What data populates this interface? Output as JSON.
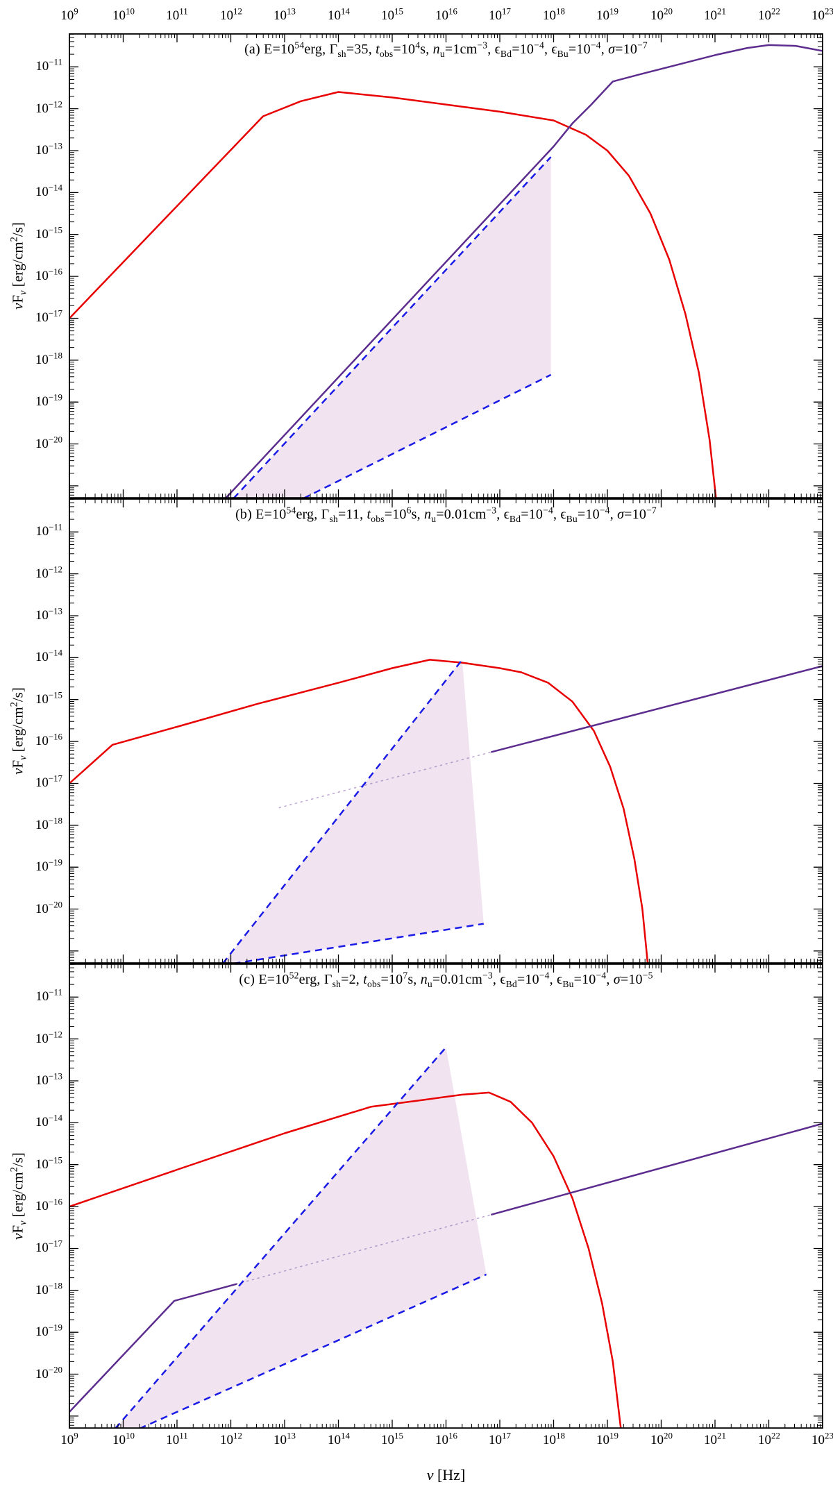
{
  "figure": {
    "background": "#ffffff",
    "frame_color": "#000000",
    "x_axis": {
      "min_exp": 9,
      "max_exp": 23,
      "title": "*ν* [Hz]",
      "tick_label_base": "10",
      "labeled_exponents": [
        9,
        10,
        11,
        12,
        13,
        14,
        15,
        16,
        17,
        18,
        19,
        20,
        21,
        22,
        23
      ]
    },
    "y_axis": {
      "top_limit_exp": -10.2,
      "bottom_limit_exp": -21.3,
      "title": "*ν*F_{*ν*} [erg/cm^{2}/s]",
      "labeled_exponents": [
        -11,
        -12,
        -13,
        -14,
        -15,
        -16,
        -17,
        -18,
        -19,
        -20
      ]
    },
    "colors": {
      "red_line": "#e80000",
      "purple_line": "#5c2d8e",
      "blue_dashed": "#1a1ae6",
      "shade_fill": "#f1e4f0"
    }
  },
  "chart_data": [
    {
      "type": "line",
      "panel_id": "a",
      "title": "(a) E=10^{54}erg, Γ_{sh}=35, *t*_{obs}=10^{4}s, *n*_{u}=1cm^{−3}, ϵ_{Bd}=10^{−4}, ϵ_{Bu}=10^{−4}, *σ*=10^{−7}",
      "x_log10_range": [
        9,
        23
      ],
      "y_log10_range": [
        -21.3,
        -10.2
      ],
      "shade_region_log10": [
        [
          12.05,
          -21.3
        ],
        [
          17.95,
          -13.15
        ],
        [
          17.95,
          -18.35
        ],
        [
          13.35,
          -21.3
        ]
      ],
      "series": [
        {
          "name": "red-solid-curve",
          "style": "solid",
          "color_key": "red_line",
          "points_log10": [
            [
              9,
              -17
            ],
            [
              12.6,
              -12.18
            ],
            [
              13.3,
              -11.82
            ],
            [
              14,
              -11.6
            ],
            [
              15,
              -11.73
            ],
            [
              16,
              -11.9
            ],
            [
              17,
              -12.07
            ],
            [
              18,
              -12.28
            ],
            [
              18.6,
              -12.62
            ],
            [
              19,
              -13
            ],
            [
              19.4,
              -13.6
            ],
            [
              19.8,
              -14.5
            ],
            [
              20.15,
              -15.6
            ],
            [
              20.45,
              -16.9
            ],
            [
              20.7,
              -18.3
            ],
            [
              20.9,
              -19.9
            ],
            [
              21.02,
              -21.3
            ]
          ]
        },
        {
          "name": "purple-solid-curve",
          "style": "solid",
          "color_key": "purple_line",
          "points_log10": [
            [
              11.9,
              -21.3
            ],
            [
              18,
              -12.9
            ],
            [
              18.35,
              -12.35
            ],
            [
              18.7,
              -11.9
            ],
            [
              19.1,
              -11.35
            ],
            [
              19.6,
              -11.18
            ],
            [
              20.3,
              -10.95
            ],
            [
              21,
              -10.72
            ],
            [
              21.6,
              -10.55
            ],
            [
              22,
              -10.48
            ],
            [
              22.5,
              -10.5
            ],
            [
              23,
              -10.62
            ]
          ]
        },
        {
          "name": "blue-dashed-upper",
          "style": "dashed",
          "color_key": "blue_dashed",
          "points_log10": [
            [
              12.05,
              -21.3
            ],
            [
              17.95,
              -13.15
            ]
          ]
        },
        {
          "name": "blue-dashed-lower",
          "style": "dashed",
          "color_key": "blue_dashed",
          "points_log10": [
            [
              13.35,
              -21.3
            ],
            [
              17.95,
              -18.35
            ]
          ]
        }
      ]
    },
    {
      "type": "line",
      "panel_id": "b",
      "title": "(b) E=10^{54}erg, Γ_{sh}=11, *t*_{obs}=10^{6}s, *n*_{u}=0.01cm^{−3}, ϵ_{Bd}=10^{−4}, ϵ_{Bu}=10^{−4}, *σ*=10^{−7}",
      "x_log10_range": [
        9,
        23
      ],
      "y_log10_range": [
        -21.3,
        -10.2
      ],
      "shade_region_log10": [
        [
          11.85,
          -21.3
        ],
        [
          16.3,
          -14.05
        ],
        [
          16.7,
          -20.35
        ],
        [
          12.05,
          -21.3
        ]
      ],
      "series": [
        {
          "name": "purple-dotted-faint",
          "style": "dotted-faint",
          "color_key": "purple_line",
          "points_log10": [
            [
              12.9,
              -17.58
            ],
            [
              16.85,
              -16.25
            ]
          ]
        },
        {
          "name": "red-solid-curve",
          "style": "solid",
          "color_key": "red_line",
          "points_log10": [
            [
              9,
              -17
            ],
            [
              9.8,
              -16.08
            ],
            [
              11,
              -15.65
            ],
            [
              12.5,
              -15.1
            ],
            [
              14,
              -14.6
            ],
            [
              15,
              -14.25
            ],
            [
              15.7,
              -14.05
            ],
            [
              16.3,
              -14.12
            ],
            [
              17,
              -14.25
            ],
            [
              17.4,
              -14.35
            ],
            [
              17.9,
              -14.6
            ],
            [
              18.35,
              -15.05
            ],
            [
              18.75,
              -15.75
            ],
            [
              19.05,
              -16.6
            ],
            [
              19.3,
              -17.6
            ],
            [
              19.5,
              -18.8
            ],
            [
              19.65,
              -20
            ],
            [
              19.75,
              -21.3
            ]
          ]
        },
        {
          "name": "purple-solid-curve",
          "style": "solid",
          "color_key": "purple_line",
          "points_log10": [
            [
              16.85,
              -16.25
            ],
            [
              23,
              -14.2
            ]
          ]
        },
        {
          "name": "blue-dashed-upper",
          "style": "dashed",
          "color_key": "blue_dashed",
          "points_log10": [
            [
              11.85,
              -21.3
            ],
            [
              16.3,
              -14.05
            ]
          ]
        },
        {
          "name": "blue-dashed-lower",
          "style": "dashed",
          "color_key": "blue_dashed",
          "points_log10": [
            [
              12.05,
              -21.3
            ],
            [
              16.7,
              -20.35
            ]
          ]
        }
      ]
    },
    {
      "type": "line",
      "panel_id": "c",
      "title": "(c) E=10^{52}erg, Γ_{sh}=2, *t*_{obs}=10^{7}s, *n*_{u}=0.01cm^{−3}, ϵ_{Bd}=10^{−4}, ϵ_{Bu}=10^{−4}, *σ*=10^{−5}",
      "x_log10_range": [
        9,
        23
      ],
      "y_log10_range": [
        -21.3,
        -10.2
      ],
      "shade_region_log10": [
        [
          9.85,
          -21.3
        ],
        [
          16,
          -12.2
        ],
        [
          16.75,
          -17.62
        ],
        [
          10.3,
          -21.3
        ]
      ],
      "series": [
        {
          "name": "purple-dotted-faint",
          "style": "dotted-faint",
          "color_key": "purple_line",
          "points_log10": [
            [
              12.1,
              -17.85
            ],
            [
              16.85,
              -16.19
            ]
          ]
        },
        {
          "name": "red-solid-curve",
          "style": "solid",
          "color_key": "red_line",
          "points_log10": [
            [
              9,
              -16
            ],
            [
              11,
              -15.12
            ],
            [
              13,
              -14.25
            ],
            [
              14.6,
              -13.62
            ],
            [
              15.6,
              -13.45
            ],
            [
              16.3,
              -13.33
            ],
            [
              16.8,
              -13.28
            ],
            [
              17.2,
              -13.5
            ],
            [
              17.6,
              -14
            ],
            [
              18,
              -14.8
            ],
            [
              18.35,
              -15.8
            ],
            [
              18.65,
              -17
            ],
            [
              18.9,
              -18.3
            ],
            [
              19.1,
              -19.7
            ],
            [
              19.25,
              -21.3
            ]
          ]
        },
        {
          "name": "purple-solid-curve-left",
          "style": "solid",
          "color_key": "purple_line",
          "points_log10": [
            [
              9,
              -20.9
            ],
            [
              10.95,
              -18.25
            ],
            [
              12.1,
              -17.85
            ]
          ]
        },
        {
          "name": "purple-solid-curve-right",
          "style": "solid",
          "color_key": "purple_line",
          "points_log10": [
            [
              16.85,
              -16.19
            ],
            [
              23,
              -14.02
            ]
          ]
        },
        {
          "name": "blue-dashed-upper",
          "style": "dashed",
          "color_key": "blue_dashed",
          "points_log10": [
            [
              9.85,
              -21.3
            ],
            [
              16,
              -12.2
            ]
          ]
        },
        {
          "name": "blue-dashed-lower",
          "style": "dashed",
          "color_key": "blue_dashed",
          "points_log10": [
            [
              10.3,
              -21.3
            ],
            [
              16.75,
              -17.62
            ]
          ]
        }
      ]
    }
  ]
}
